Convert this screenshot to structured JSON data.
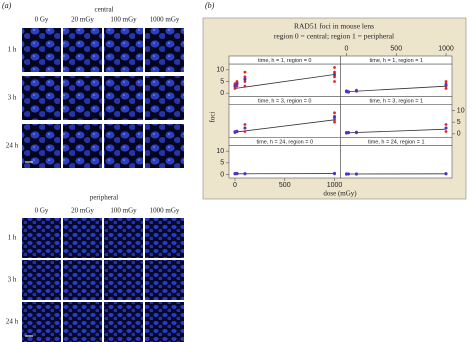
{
  "panel_a": {
    "label": "(a)",
    "sections": [
      {
        "title": "central",
        "columns": [
          "0 Gy",
          "20 mGy",
          "100 mGy",
          "1000 mGy"
        ],
        "rows": [
          "1 h",
          "3 h",
          "24 h"
        ]
      },
      {
        "title": "peripheral",
        "columns": [
          "0 Gy",
          "20 mGy",
          "100 mGy",
          "1000 mGy"
        ],
        "rows": [
          "1 h",
          "3 h",
          "24 h"
        ]
      }
    ]
  },
  "panel_b": {
    "label": "(b)"
  },
  "chart_data": {
    "type": "scatter",
    "title": "RAD51 foci in mouse lens",
    "subtitle": "region 0 = central; region 1 = peripheral",
    "xlabel": "dose (mGy)",
    "ylabel": "foci",
    "xlim": [
      -60,
      1060
    ],
    "ylim": [
      -1.5,
      12.5
    ],
    "xticks": [
      0,
      500,
      1000
    ],
    "yticks": [
      0,
      5,
      10
    ],
    "point_color": "#e8202a",
    "mean_color": "#3a3ad0",
    "line_color": "#333333",
    "panels": [
      {
        "strip": "time, h = 1, region = 0",
        "points": {
          "x": [
            0,
            0,
            0,
            0,
            20,
            20,
            20,
            20,
            100,
            100,
            100,
            100,
            100,
            1000,
            1000,
            1000,
            1000,
            1000
          ],
          "y": [
            2,
            3,
            3.5,
            4,
            3,
            4,
            4.5,
            5,
            3,
            5,
            6,
            7,
            9,
            5,
            7,
            8,
            9,
            11
          ]
        },
        "mean": {
          "x": [
            0,
            20,
            100,
            1000
          ],
          "y": [
            3,
            4,
            6,
            8
          ]
        },
        "fit": {
          "x": [
            0,
            1000
          ],
          "y": [
            2,
            8
          ]
        }
      },
      {
        "strip": "time, h = 1, region = 1",
        "points": {
          "x": [
            0,
            0,
            0,
            20,
            20,
            100,
            100,
            100,
            1000,
            1000,
            1000,
            1000
          ],
          "y": [
            0.5,
            0.8,
            1,
            0.4,
            0.7,
            0.8,
            1,
            1.3,
            2,
            3,
            4,
            5
          ]
        },
        "mean": {
          "x": [
            0,
            20,
            100,
            1000
          ],
          "y": [
            0.8,
            0.5,
            1,
            3.5
          ]
        },
        "fit": {
          "x": [
            0,
            1000
          ],
          "y": [
            0.6,
            3
          ]
        }
      },
      {
        "strip": "time, h = 3, region = 0",
        "points": {
          "x": [
            0,
            0,
            0,
            20,
            20,
            100,
            100,
            100,
            1000,
            1000,
            1000,
            1000
          ],
          "y": [
            0.5,
            0.8,
            1,
            0.9,
            1.2,
            1,
            2.5,
            4,
            5,
            6,
            7.5,
            9
          ]
        },
        "mean": {
          "x": [
            0,
            20,
            100,
            1000
          ],
          "y": [
            0.8,
            1,
            2.5,
            7
          ]
        },
        "fit": {
          "x": [
            0,
            1000
          ],
          "y": [
            0.7,
            6
          ]
        }
      },
      {
        "strip": "time, h = 3, region = 1",
        "points": {
          "x": [
            0,
            0,
            20,
            20,
            100,
            100,
            1000,
            1000,
            1000
          ],
          "y": [
            0.3,
            0.6,
            0.4,
            0.6,
            0.4,
            0.8,
            1,
            2.5,
            4
          ]
        },
        "mean": {
          "x": [
            0,
            20,
            100,
            1000
          ],
          "y": [
            0.4,
            0.5,
            0.6,
            2.5
          ]
        },
        "fit": {
          "x": [
            0,
            1000
          ],
          "y": [
            0.4,
            2
          ]
        }
      },
      {
        "strip": "time, h = 24, region = 0",
        "points": {
          "x": [
            0,
            0,
            20,
            20,
            100,
            100,
            1000,
            1000
          ],
          "y": [
            0.2,
            0.5,
            0.3,
            0.5,
            0.2,
            0.4,
            0.3,
            0.6
          ]
        },
        "mean": {
          "x": [
            0,
            20,
            100,
            1000
          ],
          "y": [
            0.3,
            0.4,
            0.3,
            0.4
          ]
        },
        "fit": {
          "x": [
            0,
            1000
          ],
          "y": [
            0.3,
            0.4
          ]
        }
      },
      {
        "strip": "time, h = 24, region = 1",
        "points": {
          "x": [
            0,
            0,
            20,
            100,
            100,
            1000,
            1000
          ],
          "y": [
            0.1,
            0.3,
            0.2,
            0.1,
            0.3,
            0.2,
            0.4
          ]
        },
        "mean": {
          "x": [
            0,
            20,
            100,
            1000
          ],
          "y": [
            0.2,
            0.2,
            0.2,
            0.3
          ]
        },
        "fit": {
          "x": [
            0,
            1000
          ],
          "y": [
            0.2,
            0.3
          ]
        }
      }
    ]
  }
}
